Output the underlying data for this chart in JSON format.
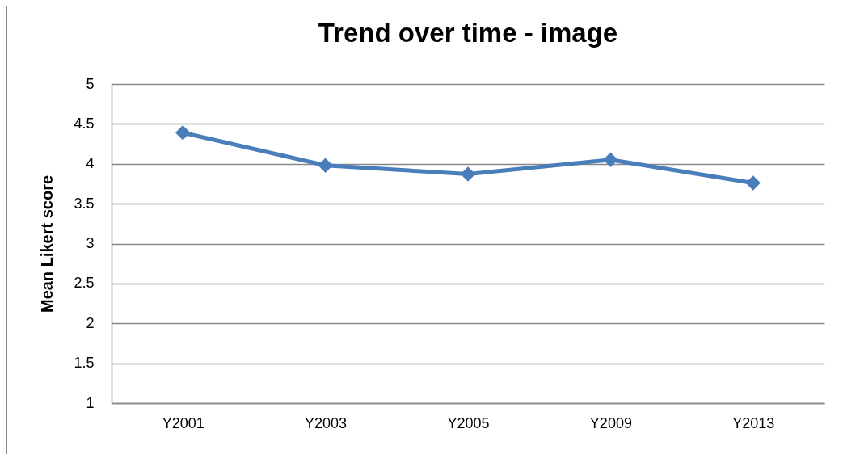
{
  "chart_data": {
    "type": "line",
    "title": "Trend over time - image",
    "ylabel": "Mean Likert score",
    "categories": [
      "Y2001",
      "Y2003",
      "Y2005",
      "Y2009",
      "Y2013"
    ],
    "series": [
      {
        "color": "#4a7ebb",
        "values": [
          4.39,
          3.98,
          3.87,
          4.05,
          3.76
        ]
      }
    ],
    "ylim": [
      1,
      5
    ],
    "yticks": [
      1,
      1.5,
      2,
      2.5,
      3,
      3.5,
      4,
      4.5,
      5
    ],
    "grid": "y",
    "legend": false,
    "marker": "diamond",
    "line_style": "solid"
  }
}
